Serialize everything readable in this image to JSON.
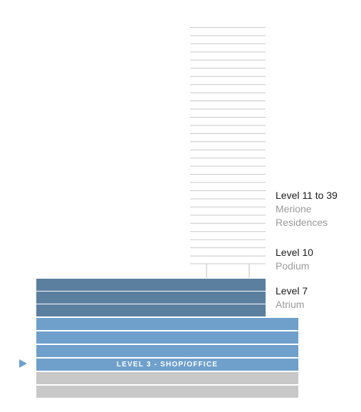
{
  "legend": {
    "residences": {
      "level": "Level 11 to 39",
      "name_line1": "Merione",
      "name_line2": "Residences"
    },
    "podium": {
      "level": "Level 10",
      "name": "Podium"
    },
    "atrium": {
      "level": "Level 7",
      "name": "Atrium"
    }
  },
  "floors": {
    "current_label": "LEVEL 3 - SHOP/OFFICE"
  },
  "colors": {
    "tower_lines": "#c8c8c8",
    "atrium": "#5b7f9f",
    "shop_office": "#6fa0cc",
    "lower": "#c8c8c8"
  },
  "icons": {
    "current_floor_marker": "triangle-right-icon"
  }
}
